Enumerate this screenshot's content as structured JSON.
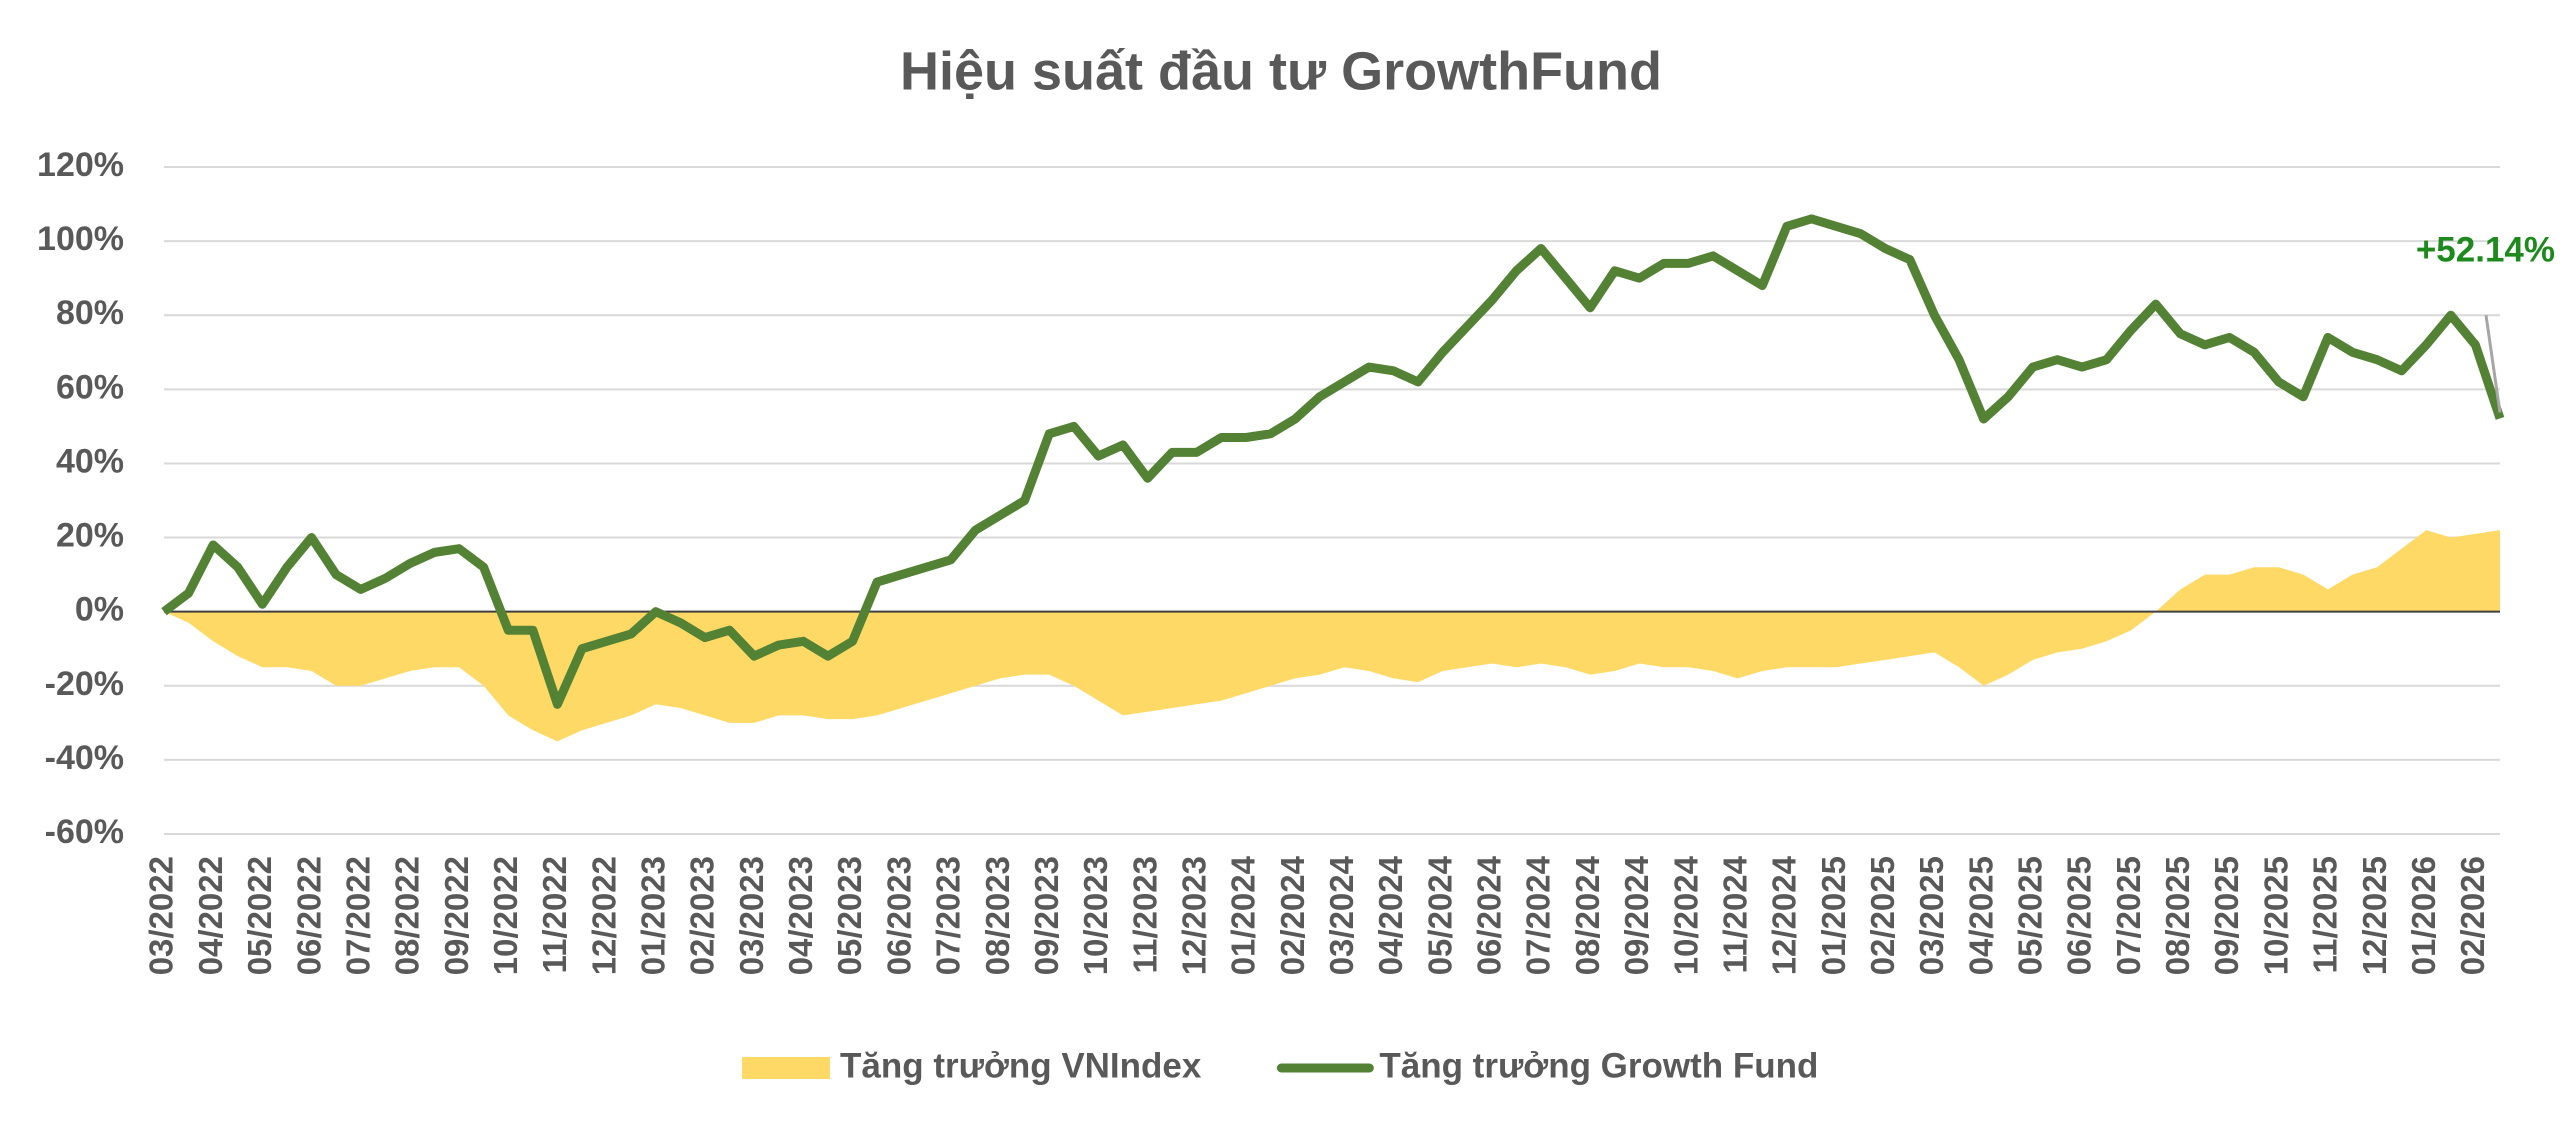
{
  "chart_data": {
    "type": "line-area",
    "title": "Hiệu suất đầu tư GrowthFund",
    "annotation": "+52.14%",
    "annotation_color": "#1e8a1e",
    "categories": [
      "03/2022",
      null,
      "04/2022",
      null,
      "05/2022",
      null,
      "06/2022",
      null,
      "07/2022",
      null,
      "08/2022",
      null,
      "09/2022",
      null,
      "10/2022",
      null,
      "11/2022",
      null,
      "12/2022",
      null,
      "01/2023",
      null,
      "02/2023",
      null,
      "03/2023",
      null,
      "04/2023",
      null,
      "05/2023",
      null,
      "06/2023",
      null,
      "07/2023",
      null,
      "08/2023",
      null,
      "09/2023",
      null,
      "10/2023",
      null,
      "11/2023",
      null,
      "12/2023",
      null,
      "01/2024",
      null,
      "02/2024",
      null,
      "03/2024",
      null,
      "04/2024",
      null,
      "05/2024",
      null,
      "06/2024",
      null,
      "07/2024",
      null,
      "08/2024",
      null,
      "09/2024",
      null,
      "10/2024",
      null,
      "11/2024",
      null,
      "12/2024",
      null,
      "01/2025",
      null,
      "02/2025",
      null,
      "03/2025",
      null,
      "04/2025",
      null,
      "05/2025",
      null,
      "06/2025",
      null,
      "07/2025",
      null,
      "08/2025",
      null,
      "09/2025",
      null,
      "10/2025",
      null,
      "11/2025",
      null,
      "12/2025",
      null,
      "01/2026",
      null,
      "02/2026",
      null
    ],
    "series": [
      {
        "name": "Tăng trưởng VNIndex",
        "kind": "area",
        "color": "#ffd966",
        "values": [
          0,
          -3,
          -8,
          -12,
          -15,
          -15,
          -16,
          -20,
          -20,
          -18,
          -16,
          -15,
          -15,
          -20,
          -28,
          -32,
          -35,
          -32,
          -30,
          -28,
          -25,
          -26,
          -28,
          -30,
          -30,
          -28,
          -28,
          -29,
          -29,
          -28,
          -26,
          -24,
          -22,
          -20,
          -18,
          -17,
          -17,
          -20,
          -24,
          -28,
          -27,
          -26,
          -25,
          -24,
          -22,
          -20,
          -18,
          -17,
          -15,
          -16,
          -18,
          -19,
          -16,
          -15,
          -14,
          -15,
          -14,
          -15,
          -17,
          -16,
          -14,
          -15,
          -15,
          -16,
          -18,
          -16,
          -15,
          -15,
          -15,
          -14,
          -13,
          -12,
          -11,
          -15,
          -20,
          -17,
          -13,
          -11,
          -10,
          -8,
          -5,
          0,
          6,
          10,
          10,
          12,
          12,
          10,
          6,
          10,
          12,
          17,
          22,
          20,
          21,
          22
        ]
      },
      {
        "name": "Tăng trưởng Growth Fund",
        "kind": "line",
        "color": "#548235",
        "values": [
          0,
          5,
          18,
          12,
          2,
          12,
          20,
          10,
          6,
          9,
          13,
          16,
          17,
          12,
          -5,
          -5,
          -25,
          -10,
          -8,
          -6,
          0,
          -3,
          -7,
          -5,
          -12,
          -9,
          -8,
          -12,
          -8,
          8,
          10,
          12,
          14,
          22,
          26,
          30,
          48,
          50,
          42,
          45,
          36,
          43,
          43,
          47,
          47,
          48,
          52,
          58,
          62,
          66,
          65,
          62,
          70,
          77,
          84,
          92,
          98,
          90,
          82,
          92,
          90,
          94,
          94,
          96,
          92,
          88,
          104,
          106,
          104,
          102,
          98,
          95,
          80,
          68,
          52,
          58,
          66,
          68,
          66,
          68,
          76,
          83,
          75,
          72,
          74,
          70,
          62,
          58,
          74,
          70,
          68,
          65,
          72,
          80,
          72,
          52.14
        ]
      }
    ],
    "ylim": [
      -60,
      120
    ],
    "yticks": [
      {
        "value": -60,
        "label": "-60%"
      },
      {
        "value": -40,
        "label": "-40%"
      },
      {
        "value": -20,
        "label": "-20%"
      },
      {
        "value": 0,
        "label": "0%"
      },
      {
        "value": 20,
        "label": "20%"
      },
      {
        "value": 40,
        "label": "40%"
      },
      {
        "value": 60,
        "label": "60%"
      },
      {
        "value": 80,
        "label": "80%"
      },
      {
        "value": 100,
        "label": "100%"
      },
      {
        "value": 120,
        "label": "120%"
      }
    ],
    "grid": true
  }
}
